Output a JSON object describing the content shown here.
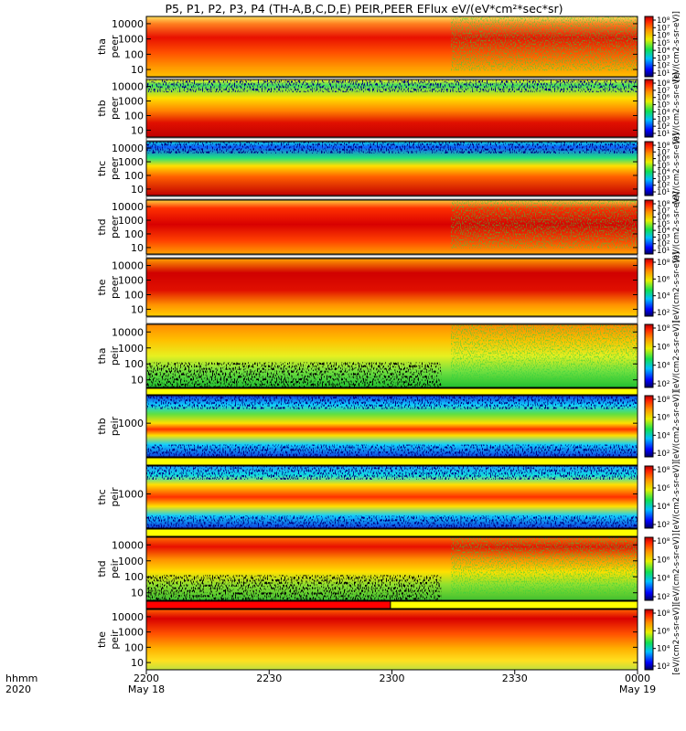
{
  "title": "P5, P1, P2, P3, P4 (TH-A,B,C,D,E) PEIR,PEER EFlux eV/(eV*cm²*sec*sr)",
  "colors": {
    "low": "#1010c0",
    "mid": "#20e040",
    "high": "#ffd000",
    "peak": "#d00000"
  },
  "chart_data": {
    "type": "heatmap",
    "title": "P5, P1, P2, P3, P4 (TH-A,B,C,D,E) PEIR,PEER EFlux eV/(eV*cm²*sec*sr)",
    "x_axis": {
      "row1_label": "hhmm",
      "row2_label": "2020",
      "ticks": [
        {
          "hhmm": "2200",
          "date": "May 18"
        },
        {
          "hhmm": "2230",
          "date": ""
        },
        {
          "hhmm": "2300",
          "date": ""
        },
        {
          "hhmm": "2330",
          "date": ""
        },
        {
          "hhmm": "0000",
          "date": "May 19"
        }
      ]
    },
    "colorbar_ticks_tall": [
      "10⁸",
      "10⁷",
      "10⁶",
      "10⁵",
      "10⁴",
      "10³",
      "10²",
      "10¹"
    ],
    "colorbar_ticks_short": [
      "10⁸",
      "10⁶",
      "10⁴",
      "10²"
    ],
    "colorbar_label": "[eV/(cm2-s-sr-eV)]",
    "panels": [
      {
        "id": "tha_peer",
        "label1": "tha",
        "label2": "peer",
        "y_ticks": [
          "10000",
          "1000",
          "100",
          "10"
        ],
        "cb": "tall",
        "bar_after": "white"
      },
      {
        "id": "thb_peer",
        "label1": "thb",
        "label2": "peer",
        "y_ticks": [
          "10000",
          "1000",
          "100",
          "10"
        ],
        "cb": "tall",
        "bar_after": "white"
      },
      {
        "id": "thc_peer",
        "label1": "thc",
        "label2": "peer",
        "y_ticks": [
          "10000",
          "1000",
          "100",
          "10"
        ],
        "cb": "tall",
        "bar_after": "white"
      },
      {
        "id": "thd_peer",
        "label1": "thd",
        "label2": "peer",
        "y_ticks": [
          "10000",
          "1000",
          "100",
          "10"
        ],
        "cb": "tall",
        "bar_after": "white"
      },
      {
        "id": "the_peer",
        "label1": "the",
        "label2": "peer",
        "y_ticks": [
          "10000",
          "1000",
          "100",
          "10"
        ],
        "cb": "short",
        "bar_after": "white"
      },
      {
        "id": "tha_peir",
        "label1": "tha",
        "label2": "peir",
        "y_ticks": [
          "10000",
          "1000",
          "100",
          "10"
        ],
        "cb": "short",
        "bar_after": "yellow"
      },
      {
        "id": "thb_peir",
        "label1": "thb",
        "label2": "peir",
        "y_ticks": [
          "1000"
        ],
        "cb": "short",
        "bar_after": "yellow"
      },
      {
        "id": "thc_peir",
        "label1": "thc",
        "label2": "peir",
        "y_ticks": [
          "1000"
        ],
        "cb": "short",
        "bar_after": "yellow"
      },
      {
        "id": "thd_peir",
        "label1": "thd",
        "label2": "peir",
        "y_ticks": [
          "10000",
          "1000",
          "100",
          "10"
        ],
        "cb": "short",
        "bar_after": "red-yellow"
      },
      {
        "id": "the_peir",
        "label1": "the",
        "label2": "peir",
        "y_ticks": [
          "10000",
          "1000",
          "100",
          "10"
        ],
        "cb": "short",
        "bar_after": "none"
      }
    ]
  }
}
